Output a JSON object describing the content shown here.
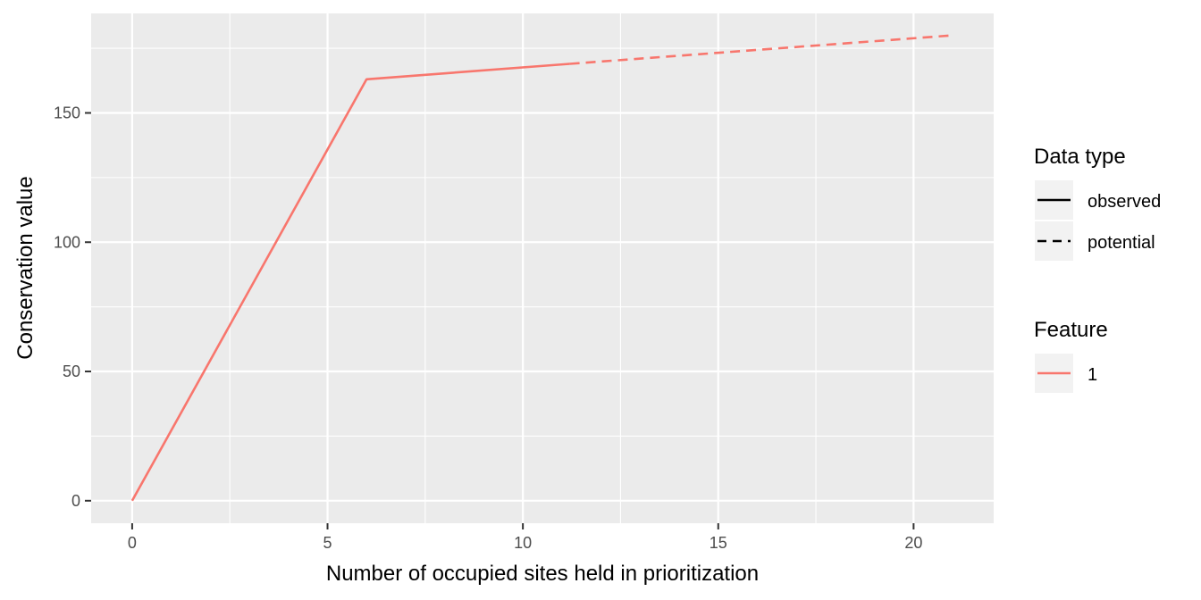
{
  "chart_data": {
    "type": "line",
    "title": "",
    "xlabel": "Number of occupied sites held in prioritization",
    "ylabel": "Conservation value",
    "xlim": [
      -1.05,
      22.05
    ],
    "ylim": [
      -8.7,
      188.5
    ],
    "x_ticks": [
      0,
      5,
      10,
      15,
      20
    ],
    "x_tick_labels": [
      "0",
      "5",
      "10",
      "15",
      "20"
    ],
    "y_ticks": [
      0,
      50,
      100,
      150
    ],
    "y_tick_labels": [
      "0",
      "50",
      "100",
      "150"
    ],
    "grid": true,
    "series": [
      {
        "name": "1",
        "data_type": "observed",
        "color": "#F8766D",
        "line_style": "solid",
        "x": [
          0,
          6,
          11.2
        ],
        "y": [
          0,
          163,
          169
        ]
      },
      {
        "name": "1",
        "data_type": "potential",
        "color": "#F8766D",
        "line_style": "dashed",
        "x": [
          11.2,
          21
        ],
        "y": [
          169,
          180
        ]
      }
    ],
    "legend": {
      "placement": "right",
      "groups": [
        {
          "title": "Data type",
          "items": [
            {
              "label": "observed",
              "style": "solid",
              "color": "#000000"
            },
            {
              "label": "potential",
              "style": "dashed",
              "color": "#000000"
            }
          ]
        },
        {
          "title": "Feature",
          "items": [
            {
              "label": "1",
              "style": "solid",
              "color": "#F8766D"
            }
          ]
        }
      ]
    },
    "panel_background": "#EBEBEB",
    "grid_color": "#FFFFFF"
  }
}
